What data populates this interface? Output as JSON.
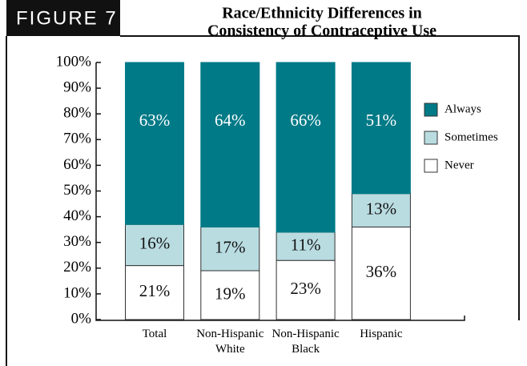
{
  "figure_label": "FIGURE 7",
  "chart_data": {
    "type": "stacked_bar",
    "title": [
      "Race/Ethnicity Differences in",
      "Consistency of Contraceptive Use"
    ],
    "categories": [
      "Total",
      "Non-Hispanic White",
      "Non-Hispanic Black",
      "Hispanic"
    ],
    "series": [
      {
        "name": "Never",
        "color": "#ffffff",
        "values": [
          21,
          19,
          23,
          36
        ],
        "value_labels": [
          "21%",
          "19%",
          "23%",
          "36%"
        ]
      },
      {
        "name": "Sometimes",
        "color": "#b9dce1",
        "values": [
          16,
          17,
          11,
          13
        ],
        "value_labels": [
          "16%",
          "17%",
          "11%",
          "13%"
        ]
      },
      {
        "name": "Always",
        "color": "#007a87",
        "values": [
          63,
          64,
          66,
          51
        ],
        "value_labels": [
          "63%",
          "64%",
          "66%",
          "51%"
        ]
      }
    ],
    "ylim": [
      0,
      100
    ],
    "yticks": [
      {
        "value": 0,
        "label": "0%"
      },
      {
        "value": 10,
        "label": "10%"
      },
      {
        "value": 20,
        "label": "20%"
      },
      {
        "value": 30,
        "label": "30%"
      },
      {
        "value": 40,
        "label": "40%"
      },
      {
        "value": 50,
        "label": "50%"
      },
      {
        "value": 60,
        "label": "60%"
      },
      {
        "value": 70,
        "label": "70%"
      },
      {
        "value": 80,
        "label": "80%"
      },
      {
        "value": 90,
        "label": "90%"
      },
      {
        "value": 100,
        "label": "100%"
      }
    ]
  }
}
